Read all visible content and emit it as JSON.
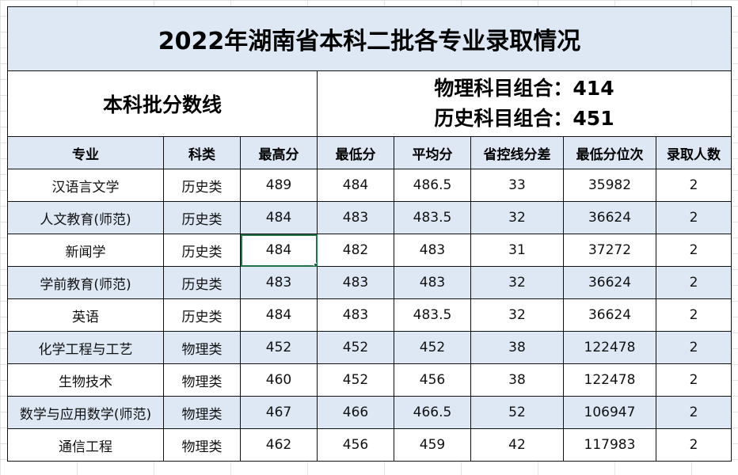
{
  "title": "2022年湖南省本科二批各专业录取情况",
  "batch_line_label": "本科批分数线",
  "physics_line": "物理科目组合：414",
  "history_line": "历史科目组合：451",
  "headers": [
    "专业",
    "科类",
    "最高分",
    "最低分",
    "平均分",
    "省控线分差",
    "最低分位次",
    "录取人数"
  ],
  "rows": [
    [
      "汉语言文学",
      "历史类",
      "489",
      "484",
      "486.5",
      "33",
      "35982",
      "2"
    ],
    [
      "人文教育(师范)",
      "历史类",
      "484",
      "483",
      "483.5",
      "32",
      "36624",
      "2"
    ],
    [
      "新闻学",
      "历史类",
      "484",
      "482",
      "483",
      "31",
      "37272",
      "2"
    ],
    [
      "学前教育(师范)",
      "历史类",
      "483",
      "483",
      "483",
      "32",
      "36624",
      "2"
    ],
    [
      "英语",
      "历史类",
      "484",
      "483",
      "483.5",
      "32",
      "36624",
      "2"
    ],
    [
      "化学工程与工艺",
      "物理类",
      "452",
      "452",
      "452",
      "38",
      "122478",
      "2"
    ],
    [
      "生物技术",
      "物理类",
      "460",
      "452",
      "456",
      "38",
      "122478",
      "2"
    ],
    [
      "数学与应用数学(师范)",
      "物理类",
      "467",
      "466",
      "466.5",
      "52",
      "106947",
      "2"
    ],
    [
      "通信工程",
      "物理类",
      "462",
      "456",
      "459",
      "42",
      "117983",
      "2"
    ]
  ],
  "colors": {
    "header_bg": "#dde8f4",
    "selection": "#217346"
  }
}
